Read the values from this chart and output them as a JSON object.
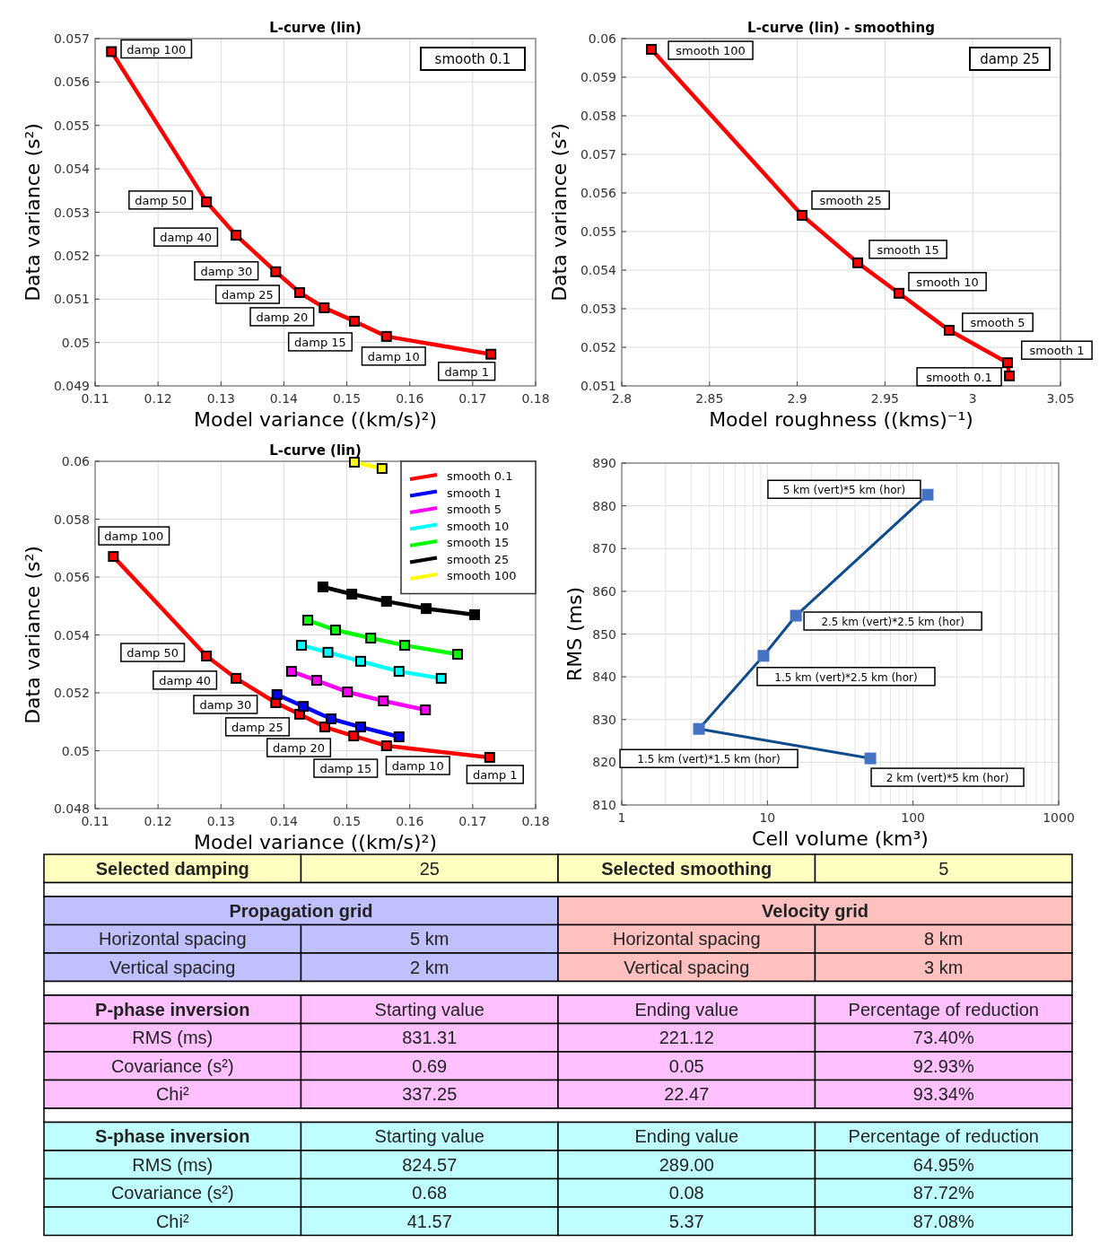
{
  "chart_data": [
    {
      "type": "line",
      "title": "L-curve (lin)",
      "xlabel": "Model variance ((km/s)²)",
      "ylabel": "Data variance (s²)",
      "xlim": [
        0.11,
        0.18
      ],
      "xticks": [
        0.11,
        0.12,
        0.13,
        0.14,
        0.15,
        0.16,
        0.17,
        0.18
      ],
      "ylim": [
        0.049,
        0.057
      ],
      "yticks": [
        0.049,
        0.05,
        0.051,
        0.052,
        0.053,
        0.054,
        0.055,
        0.056,
        0.057
      ],
      "grid": true,
      "marker": "square",
      "legend": false,
      "series": [
        {
          "color": "#ff0000",
          "x": [
            0.1126,
            0.1277,
            0.1324,
            0.1387,
            0.1425,
            0.1464,
            0.1512,
            0.1563,
            0.1729
          ],
          "values": [
            0.0567,
            0.05324,
            0.05247,
            0.05163,
            0.05115,
            0.0508,
            0.05049,
            0.05014,
            0.04973
          ]
        }
      ],
      "annotations": [
        "smooth 0.1",
        {
          "text": "damp 100",
          "x": 0.1126,
          "y": 0.0567
        },
        {
          "text": "damp 50",
          "x": 0.1277,
          "y": 0.05324
        },
        {
          "text": "damp 40",
          "x": 0.1324,
          "y": 0.05247
        },
        {
          "text": "damp 30",
          "x": 0.1387,
          "y": 0.05163
        },
        {
          "text": "damp 25",
          "x": 0.1425,
          "y": 0.05115
        },
        {
          "text": "damp 20",
          "x": 0.1464,
          "y": 0.0508
        },
        {
          "text": "damp 15",
          "x": 0.1512,
          "y": 0.05049
        },
        {
          "text": "damp 10",
          "x": 0.1563,
          "y": 0.05014
        },
        {
          "text": "damp 1",
          "x": 0.1729,
          "y": 0.04973
        }
      ]
    },
    {
      "type": "line",
      "title": "L-curve (lin) - smoothing",
      "xlabel": "Model roughness ((kms)⁻¹)",
      "ylabel": "Data variance (s²)",
      "xlim": [
        2.8,
        3.05
      ],
      "xticks": [
        2.8,
        2.85,
        2.9,
        2.95,
        3,
        3.05
      ],
      "ylim": [
        0.051,
        0.06
      ],
      "yticks": [
        0.051,
        0.052,
        0.053,
        0.054,
        0.055,
        0.056,
        0.057,
        0.058,
        0.059,
        0.06
      ],
      "grid": true,
      "marker": "square",
      "legend": false,
      "series": [
        {
          "color": "#ff0000",
          "x": [
            2.8169,
            2.9028,
            2.9345,
            2.958,
            2.9866,
            3.0198,
            3.0209
          ],
          "values": [
            0.05972,
            0.05542,
            0.05419,
            0.0534,
            0.05244,
            0.0516,
            0.05126
          ]
        }
      ],
      "annotations": [
        "damp 25",
        {
          "text": "smooth 100",
          "x": 2.8169,
          "y": 0.05972
        },
        {
          "text": "smooth 25",
          "x": 2.9028,
          "y": 0.05542
        },
        {
          "text": "smooth 15",
          "x": 2.9345,
          "y": 0.05419
        },
        {
          "text": "smooth 10",
          "x": 2.958,
          "y": 0.0534
        },
        {
          "text": "smooth 5",
          "x": 2.9866,
          "y": 0.05244
        },
        {
          "text": "smooth 1",
          "x": 3.0198,
          "y": 0.0516
        },
        {
          "text": "smooth 0.1",
          "x": 3.0209,
          "y": 0.05126
        }
      ]
    },
    {
      "type": "line",
      "title": "L-curve (lin)",
      "xlabel": "Model variance ((km/s)²)",
      "ylabel": "Data variance (s²)",
      "xlim": [
        0.11,
        0.18
      ],
      "xticks": [
        0.11,
        0.12,
        0.13,
        0.14,
        0.15,
        0.16,
        0.17,
        0.18
      ],
      "ylim": [
        0.048,
        0.06
      ],
      "yticks": [
        0.048,
        0.05,
        0.052,
        0.054,
        0.056,
        0.058,
        0.06
      ],
      "grid": true,
      "marker": "square",
      "legend": "top right",
      "series": [
        {
          "name": "smooth 0.1",
          "color": "#ff0000",
          "x": [
            0.1129,
            0.1277,
            0.1324,
            0.1387,
            0.1425,
            0.1465,
            0.1511,
            0.1563,
            0.1727
          ],
          "values": [
            0.05671,
            0.05327,
            0.0525,
            0.05166,
            0.05126,
            0.05082,
            0.05051,
            0.05017,
            0.04977
          ]
        },
        {
          "name": "smooth 1",
          "color": "#0000ff",
          "x": [
            0.1389,
            0.1431,
            0.1475,
            0.1522,
            0.1583
          ],
          "values": [
            0.05194,
            0.05153,
            0.0511,
            0.05082,
            0.05048
          ]
        },
        {
          "name": "smooth 5",
          "color": "#ff00ff",
          "x": [
            0.1412,
            0.1452,
            0.1501,
            0.1558,
            0.1625
          ],
          "values": [
            0.05274,
            0.05243,
            0.05203,
            0.05172,
            0.05141
          ]
        },
        {
          "name": "smooth 10",
          "color": "#00ffff",
          "x": [
            0.1428,
            0.147,
            0.1522,
            0.1583,
            0.165
          ],
          "values": [
            0.05364,
            0.0534,
            0.05309,
            0.05274,
            0.0525
          ]
        },
        {
          "name": "smooth 15",
          "color": "#00ff00",
          "x": [
            0.1438,
            0.1482,
            0.1538,
            0.1592,
            0.1676
          ],
          "values": [
            0.05451,
            0.05417,
            0.05389,
            0.05364,
            0.05333
          ]
        },
        {
          "name": "smooth 25",
          "color": "#000000",
          "x": [
            0.1462,
            0.1508,
            0.1563,
            0.1626,
            0.1703
          ],
          "values": [
            0.05566,
            0.05541,
            0.05516,
            0.05491,
            0.0547
          ]
        },
        {
          "name": "smooth 100",
          "color": "#ffff00",
          "x": [
            0.1512,
            0.1556
          ],
          "values": [
            0.05997,
            0.05975
          ]
        }
      ],
      "annotations": [
        {
          "text": "damp 100",
          "x": 0.1129,
          "y": 0.05671
        },
        {
          "text": "damp 50",
          "x": 0.1277,
          "y": 0.05327
        },
        {
          "text": "damp 40",
          "x": 0.1324,
          "y": 0.0525
        },
        {
          "text": "damp 30",
          "x": 0.1387,
          "y": 0.05166
        },
        {
          "text": "damp 25",
          "x": 0.1425,
          "y": 0.05126
        },
        {
          "text": "damp 20",
          "x": 0.1465,
          "y": 0.05082
        },
        {
          "text": "damp 15",
          "x": 0.1511,
          "y": 0.05051
        },
        {
          "text": "damp 10",
          "x": 0.1563,
          "y": 0.05017
        },
        {
          "text": "damp 1",
          "x": 0.1727,
          "y": 0.04977
        }
      ]
    },
    {
      "type": "line",
      "xlabel": "Cell volume (km³)",
      "ylabel": "RMS (ms)",
      "log": "x",
      "xlim": [
        1,
        1000
      ],
      "xticks": [
        1,
        10,
        100,
        1000
      ],
      "ylim": [
        810,
        890
      ],
      "yticks": [
        810,
        820,
        830,
        840,
        850,
        860,
        870,
        880,
        890
      ],
      "grid": true,
      "marker": "square",
      "legend": false,
      "series": [
        {
          "color": "#0f4c8c",
          "x": [
            126,
            15.7,
            9.4,
            3.39,
            50.9
          ],
          "values": [
            882.6,
            854.3,
            844.9,
            827.8,
            820.9
          ]
        }
      ],
      "annotations": [
        {
          "text": "5 km (vert)*5 km (hor)",
          "x": 126,
          "y": 882.6
        },
        {
          "text": "2.5 km (vert)*2.5 km (hor)",
          "x": 15.7,
          "y": 854.3
        },
        {
          "text": "1.5 km (vert)*2.5 km (hor)",
          "x": 9.4,
          "y": 844.9
        },
        {
          "text": "1.5 km (vert)*1.5 km (hor)",
          "x": 3.39,
          "y": 827.8
        },
        {
          "text": "2 km (vert)*5 km (hor)",
          "x": 50.9,
          "y": 820.9
        }
      ]
    },
    {
      "type": "other",
      "annotations": [
        "Selected damping",
        "25",
        "Selected smoothing",
        "5",
        "Propagation grid",
        "Velocity grid",
        "Horizontal spacing",
        "5 km",
        "Horizontal spacing",
        "8 km",
        "Vertical spacing",
        "2 km",
        "Vertical spacing",
        "3 km",
        "P-phase inversion",
        "Starting value",
        "Ending value",
        "Percentage of reduction",
        "RMS (ms)",
        "831.31",
        "221.12",
        "73.40%",
        "Covariance (s²)",
        "0.69",
        "0.05",
        "92.93%",
        "Chi²",
        "337.25",
        "22.47",
        "93.34%",
        "S-phase inversion",
        "Starting value",
        "Ending value",
        "Percentage of reduction",
        "RMS (ms)",
        "824.57",
        "289.00",
        "64.95%",
        "Covariance (s²)",
        "0.68",
        "0.08",
        "87.72%",
        "Chi²",
        "41.57",
        "5.37",
        "87.08%"
      ]
    }
  ]
}
